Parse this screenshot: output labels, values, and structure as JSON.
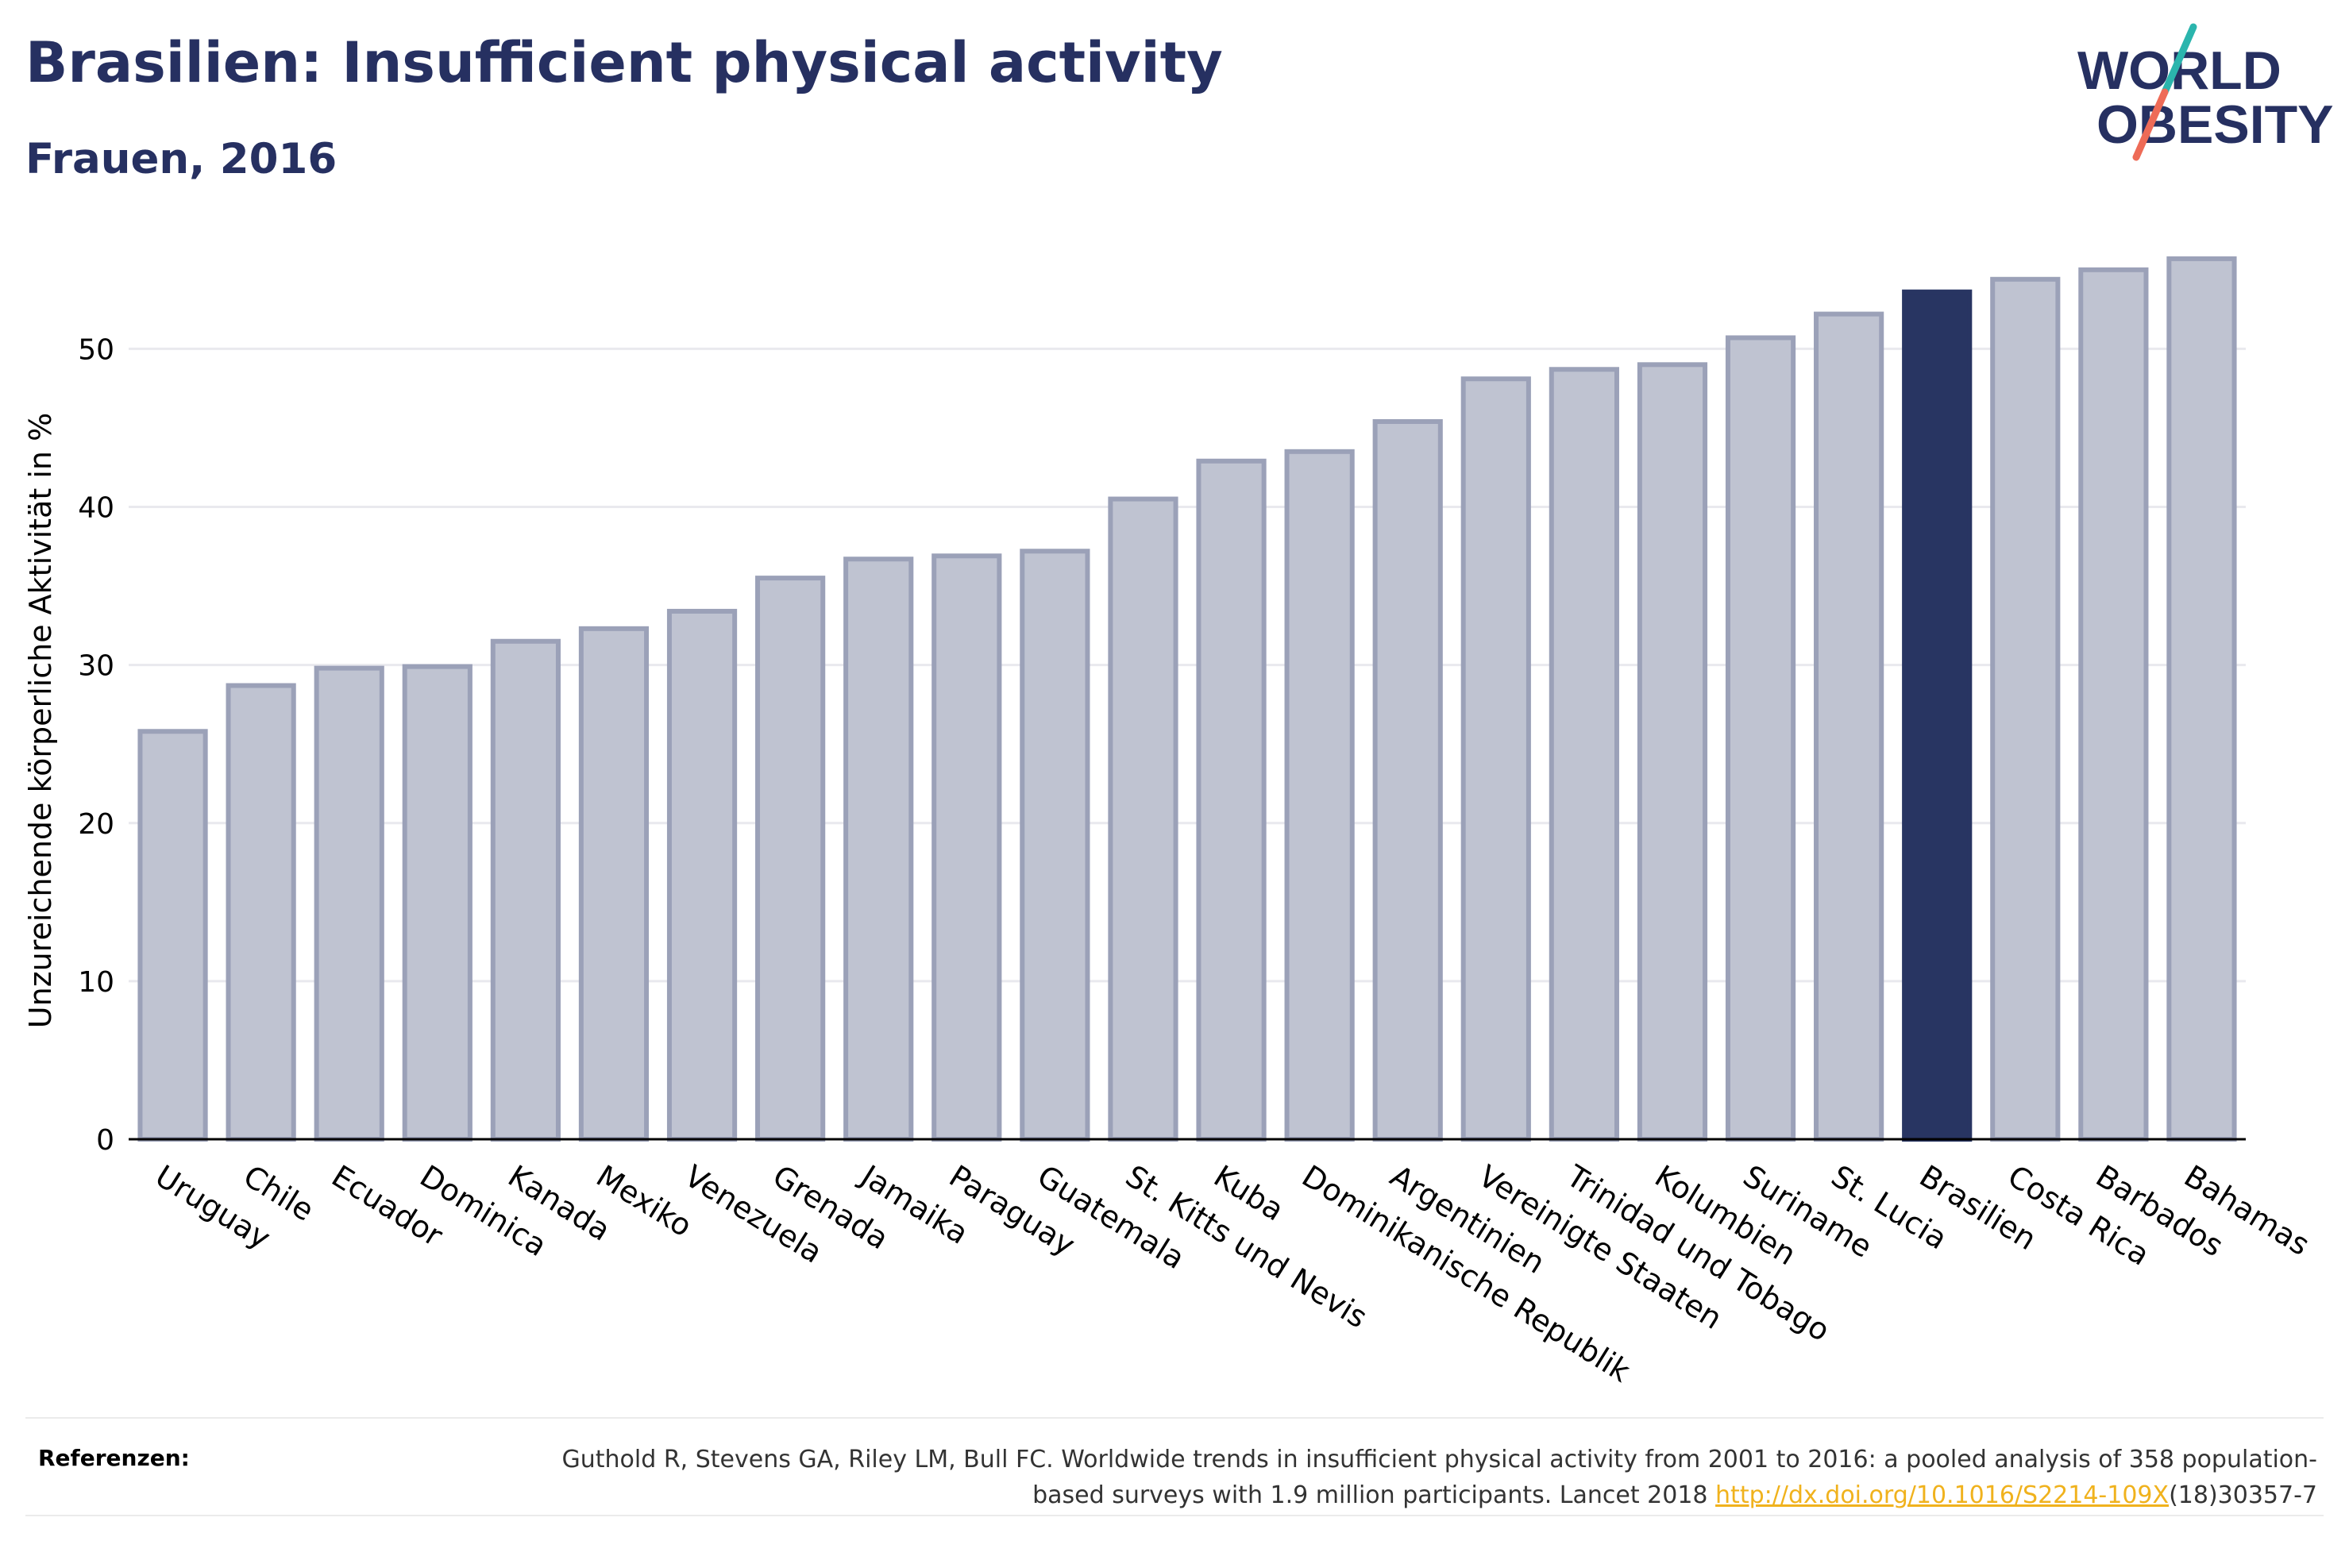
{
  "header": {
    "title": "Brasilien: Insufficient physical activity",
    "subtitle": "Frauen, 2016"
  },
  "logo": {
    "line1": "WORLD",
    "line2": "OBESITY"
  },
  "colors": {
    "bar": "#bfc3d1",
    "bar_stroke": "#9ba1b8",
    "highlight": "#283562",
    "title": "#263061",
    "link": "#f0b21d"
  },
  "chart_data": {
    "type": "bar",
    "ylabel": "Unzureichende körperliche Aktivität in %",
    "ylim": [
      0,
      57
    ],
    "yticks": [
      0,
      10,
      20,
      30,
      40,
      50
    ],
    "grid": true,
    "highlight": "Brasilien",
    "categories": [
      "Uruguay",
      "Chile",
      "Ecuador",
      "Dominica",
      "Kanada",
      "Mexiko",
      "Venezuela",
      "Grenada",
      "Jamaika",
      "Paraguay",
      "Guatemala",
      "St. Kitts und Nevis",
      "Kuba",
      "Dominikanische Republik",
      "Argentinien",
      "Vereinigte Staaten",
      "Trinidad und Tobago",
      "Kolumbien",
      "Suriname",
      "St. Lucia",
      "Brasilien",
      "Costa Rica",
      "Barbados",
      "Bahamas"
    ],
    "values": [
      25.8,
      28.7,
      29.8,
      29.9,
      31.5,
      32.3,
      33.4,
      35.5,
      36.7,
      36.9,
      37.2,
      40.5,
      42.9,
      43.5,
      45.4,
      48.1,
      48.7,
      49.0,
      50.7,
      52.2,
      53.6,
      54.4,
      55.0,
      55.7
    ]
  },
  "references": {
    "label": "Referenzen:",
    "text": "Guthold R, Stevens GA, Riley LM, Bull FC. Worldwide trends in insufficient physical activity from 2001 to 2016: a pooled analysis of 358 population-based surveys with 1.9 million participants. Lancet 2018 ",
    "link": "http://dx.doi.org/10.1016/S2214-109X",
    "suffix": "(18)30357-7"
  }
}
